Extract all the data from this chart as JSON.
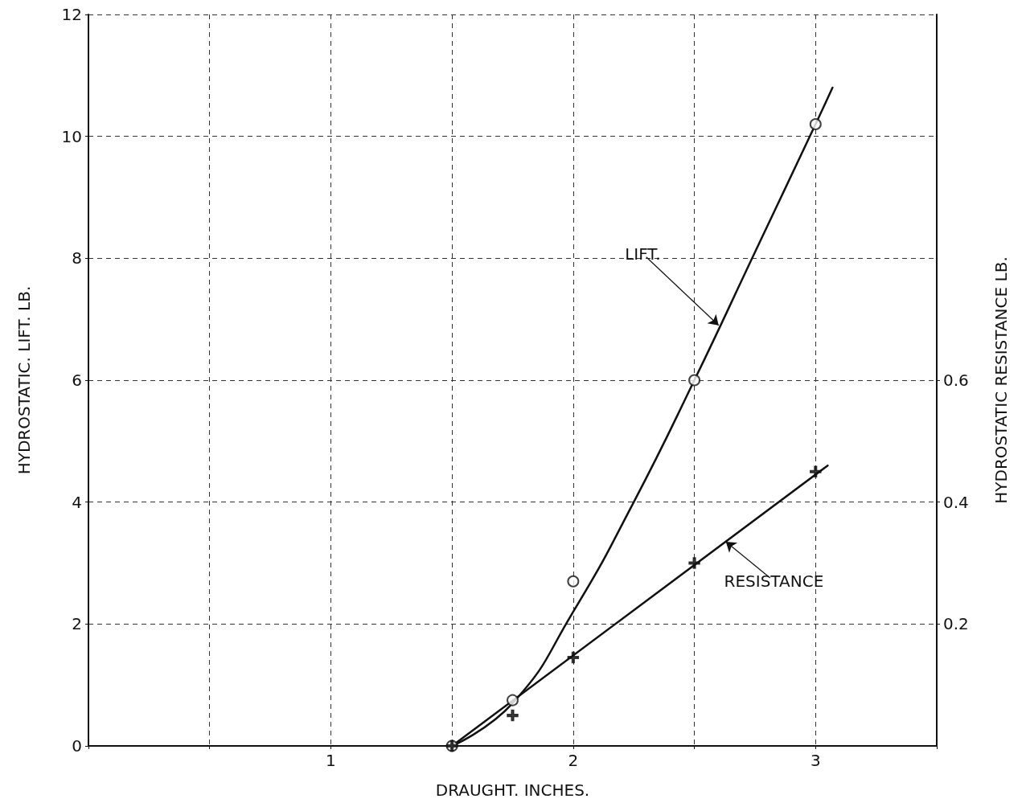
{
  "chart_data": {
    "type": "scatter",
    "xlabel": "DRAUGHT. INCHES.",
    "ylabel": "HYDROSTATIC. LIFT. LB.",
    "y2label": "HYDROSTATIC RESISTANCE LB.",
    "xlim": [
      0,
      3.5
    ],
    "xticks": [
      {
        "value": 0,
        "label": null
      },
      {
        "value": 0.5,
        "label": null
      },
      1,
      {
        "value": 1.5,
        "label": null
      },
      2,
      {
        "value": 2.5,
        "label": null
      },
      3,
      {
        "value": 3.5,
        "label": null
      }
    ],
    "ylim": [
      0,
      12
    ],
    "yticks": [
      0,
      2,
      4,
      6,
      8,
      10,
      12
    ],
    "y2lim": [
      0,
      1.2
    ],
    "y2ticks": [
      0.2,
      0.4,
      0.6
    ],
    "grid": true,
    "annotations": [
      {
        "text": "LIFT.",
        "x": 2.6,
        "y": 6.9
      },
      {
        "text": "RESISTANCE",
        "x": 2.63,
        "y": 3.35
      }
    ],
    "series": [
      {
        "marker": "circle",
        "color": "#111111",
        "x": [
          1.5,
          1.75,
          2,
          2.5,
          3
        ],
        "values": [
          0,
          0.75,
          2.7,
          6.0,
          10.2
        ]
      },
      {
        "type": "line",
        "marker": "none",
        "line_style": "solid",
        "color": "#111111",
        "x": [
          1.5,
          1.75,
          2,
          2.25,
          2.5,
          2.75,
          3,
          3.07
        ],
        "values": [
          0,
          0.7,
          2.2,
          4.0,
          6.0,
          8.1,
          10.2,
          10.8
        ]
      },
      {
        "axis": "y2",
        "marker": "cross",
        "color": "#111111",
        "x": [
          1.5,
          1.75,
          2,
          2.5,
          3
        ],
        "values": [
          0,
          0.05,
          0.145,
          0.3,
          0.45
        ]
      },
      {
        "type": "line",
        "axis": "y2",
        "marker": "none",
        "line_style": "solid",
        "color": "#111111",
        "x": [
          1.5,
          3.05
        ],
        "values": [
          0,
          0.46
        ]
      }
    ]
  }
}
